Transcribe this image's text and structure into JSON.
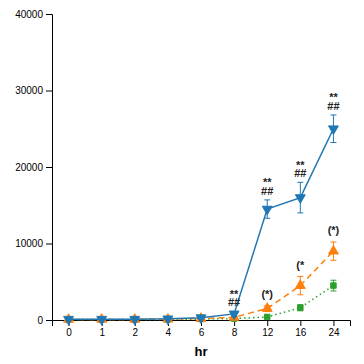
{
  "chart_data": {
    "type": "line",
    "categories": [
      "0",
      "1",
      "2",
      "4",
      "6",
      "8",
      "12",
      "16",
      "24"
    ],
    "series": [
      {
        "values": [
          100,
          100,
          100,
          150,
          300,
          800,
          14500,
          16000,
          25000
        ],
        "errors": [
          80,
          80,
          80,
          80,
          150,
          300,
          1200,
          2000,
          1800
        ],
        "marker": "triangle-down",
        "line_style": "solid"
      },
      {
        "values": [
          80,
          80,
          80,
          100,
          200,
          350,
          1500,
          4500,
          9000
        ],
        "errors": [
          60,
          60,
          60,
          60,
          80,
          200,
          400,
          1200,
          1200
        ],
        "marker": "triangle-up",
        "line_style": "dashed"
      },
      {
        "values": [
          60,
          60,
          60,
          80,
          120,
          180,
          400,
          1600,
          4500
        ],
        "errors": [
          40,
          40,
          40,
          40,
          60,
          80,
          150,
          400,
          700
        ],
        "marker": "square",
        "line_style": "dotted"
      }
    ],
    "ylim": [
      0,
      40000
    ],
    "yticks": [
      0,
      10000,
      20000,
      30000,
      40000
    ],
    "xlabel": "hr",
    "grid": false,
    "annotations": [
      {
        "text": "**",
        "x": "8",
        "y": 2900
      },
      {
        "text": "##",
        "x": "8",
        "y": 1800
      },
      {
        "text": "**",
        "x": "12",
        "y": 17500
      },
      {
        "text": "##",
        "x": "12",
        "y": 16400
      },
      {
        "text": "(*)",
        "x": "12",
        "y": 2900
      },
      {
        "text": "**",
        "x": "16",
        "y": 19800
      },
      {
        "text": "##",
        "x": "16",
        "y": 18700
      },
      {
        "text": "(*",
        "x": "16",
        "y": 6700
      },
      {
        "text": "**",
        "x": "24",
        "y": 28600
      },
      {
        "text": "##",
        "x": "24",
        "y": 27500
      },
      {
        "text": "(*)",
        "x": "24",
        "y": 11200
      }
    ]
  }
}
